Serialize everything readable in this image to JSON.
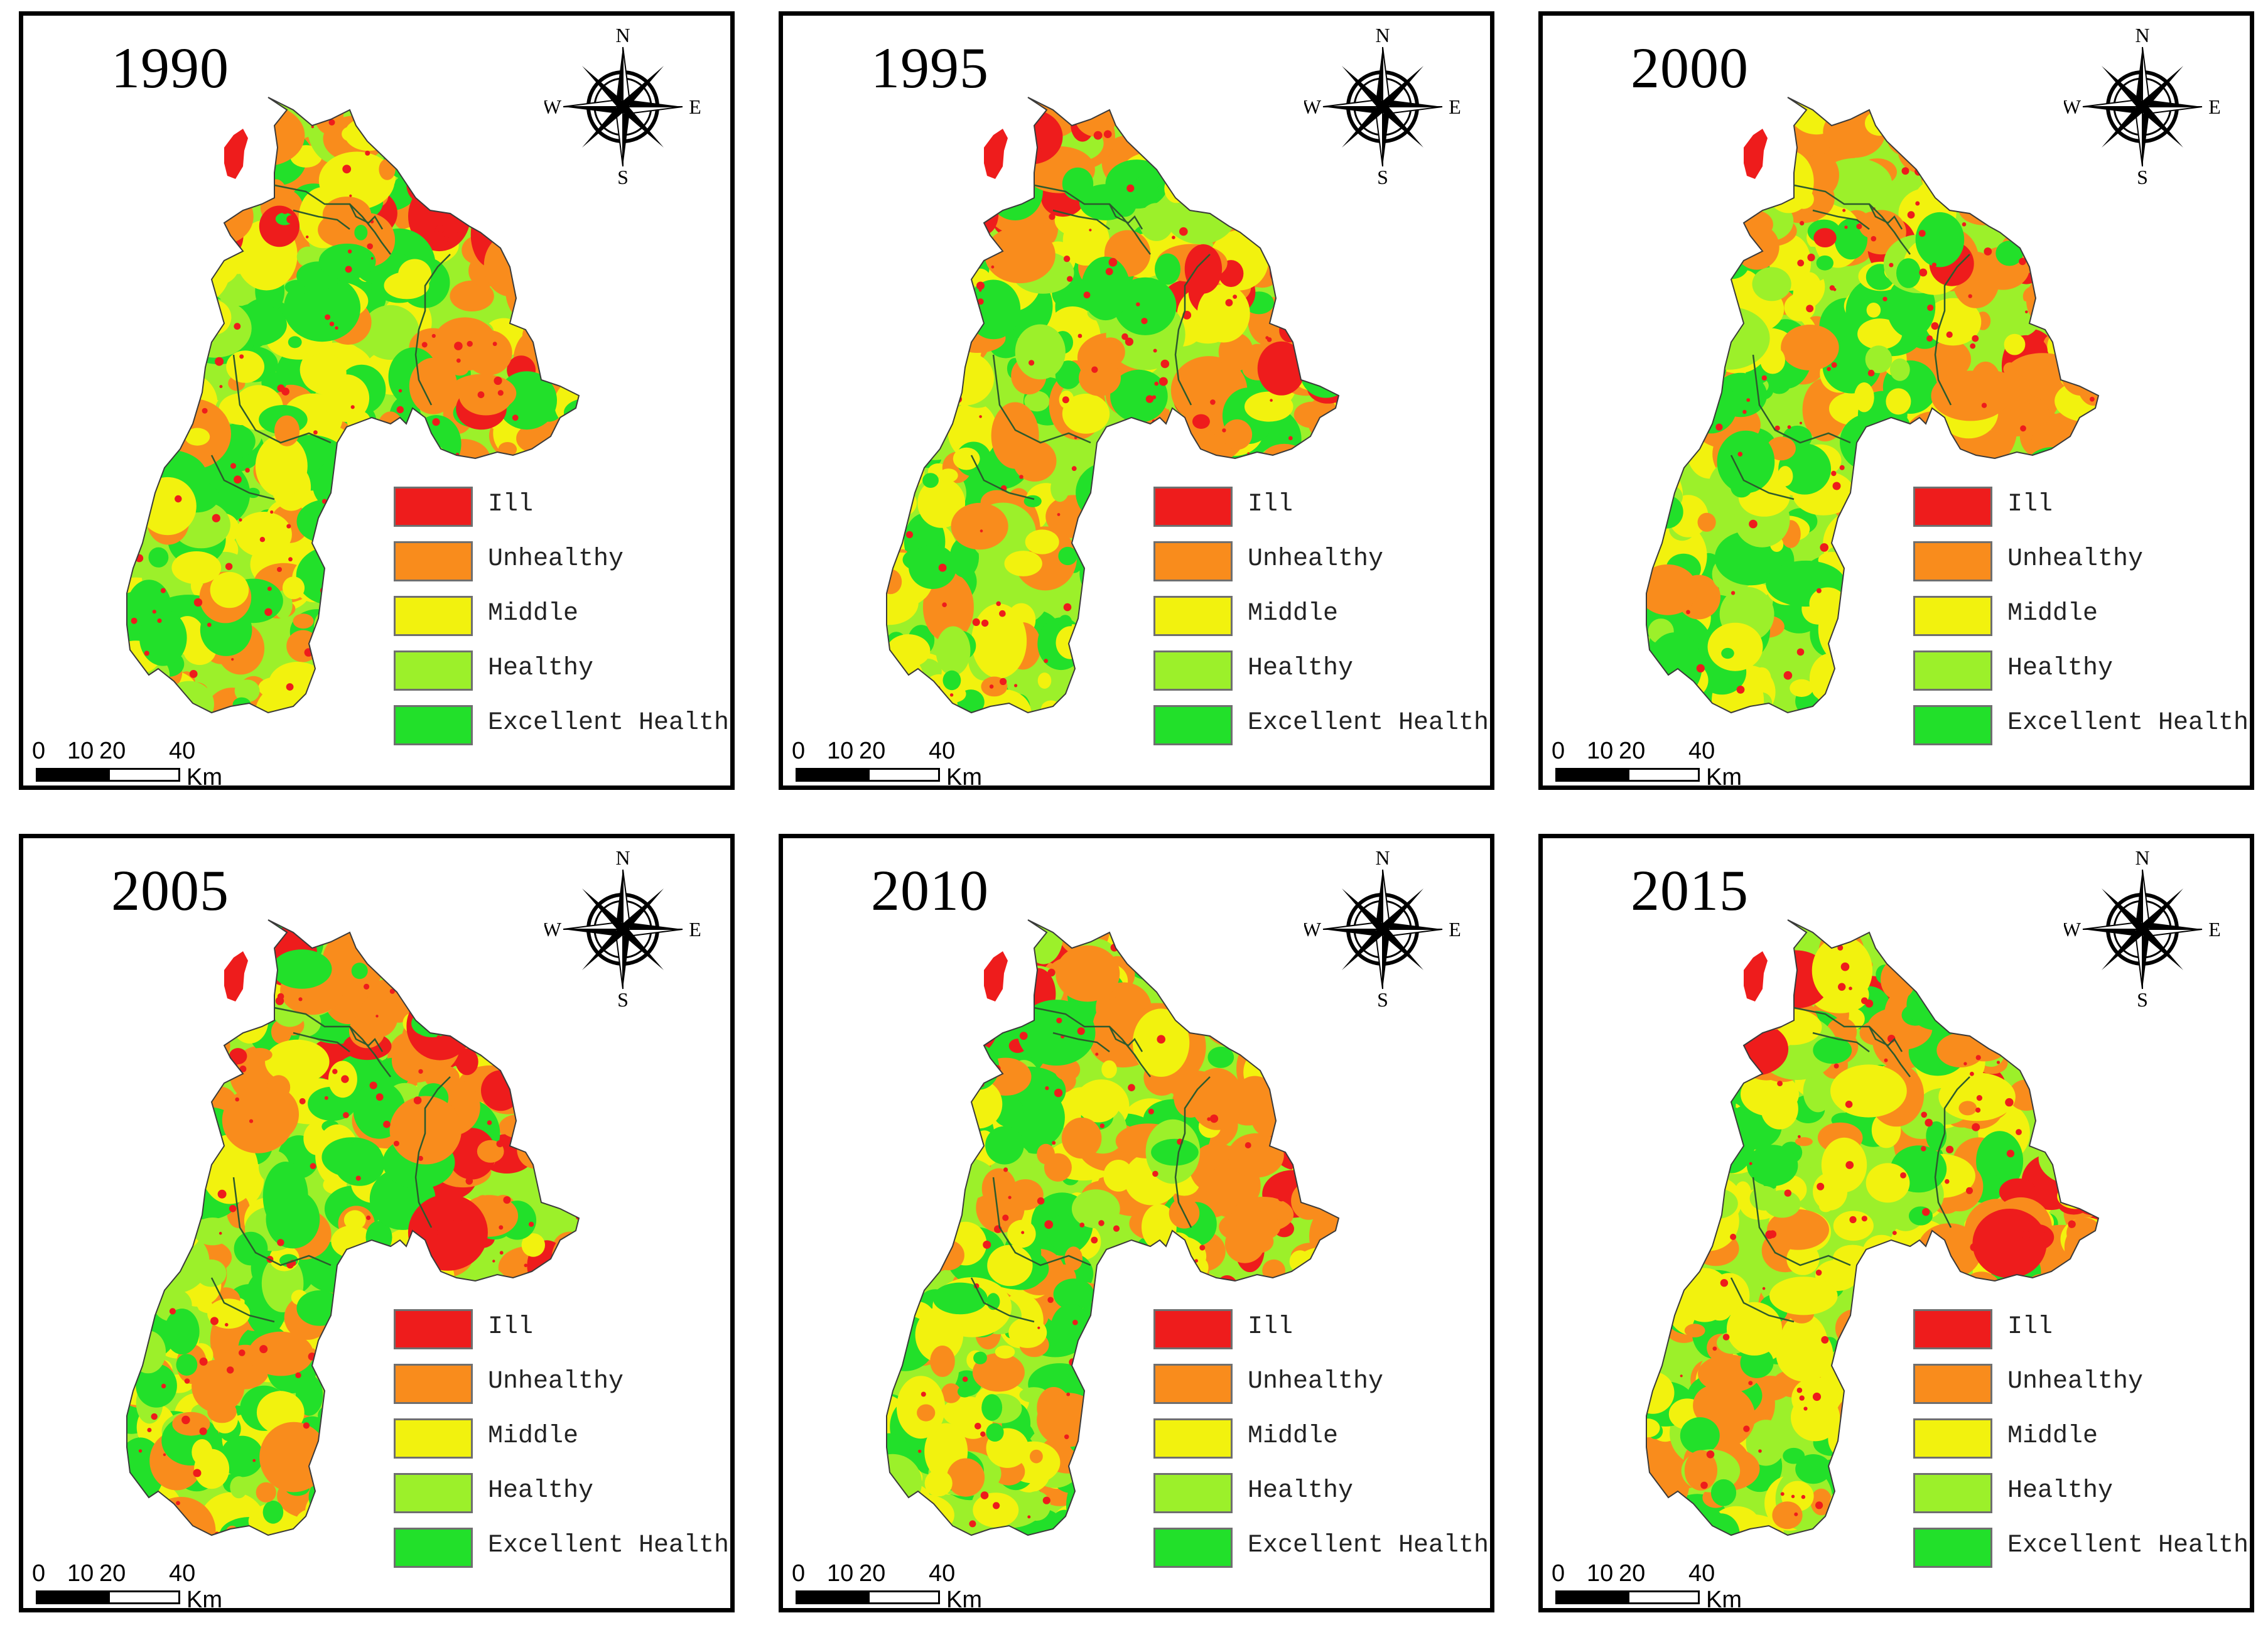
{
  "panels": [
    {
      "year": "1990"
    },
    {
      "year": "1995"
    },
    {
      "year": "2000"
    },
    {
      "year": "2005"
    },
    {
      "year": "2010"
    },
    {
      "year": "2015"
    }
  ],
  "compass": {
    "north": "N",
    "south": "S",
    "east": "E",
    "west": "W"
  },
  "legend": [
    {
      "label": "Ill",
      "color": "#ee1c1c"
    },
    {
      "label": "Unhealthy",
      "color": "#f98c1c"
    },
    {
      "label": "Middle",
      "color": "#f2f20e"
    },
    {
      "label": "Healthy",
      "color": "#9cf02a"
    },
    {
      "label": "Excellent Health",
      "color": "#22e02a"
    }
  ],
  "scale": {
    "ticks": [
      "0",
      "10",
      "20",
      "40"
    ],
    "unit": "Km"
  },
  "map_colors": {
    "excellent": "#22e02a",
    "healthy": "#9cf02a",
    "middle": "#f2f20e",
    "unhealthy": "#f98c1c",
    "ill": "#ee1c1c",
    "boundary": "#2d5a2d"
  }
}
